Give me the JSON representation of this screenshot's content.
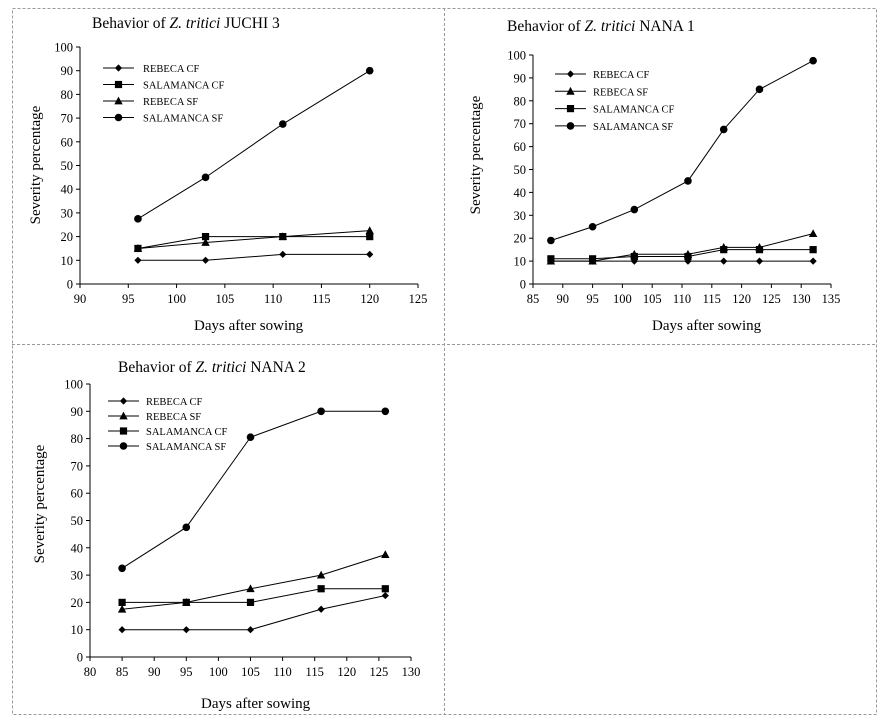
{
  "chart_data": [
    {
      "type": "line",
      "title": {
        "pre": "Behavior of ",
        "italic": "Z. tritici",
        "post": " JUCHI 3"
      },
      "xlabel": "Days after sowing",
      "ylabel": "Severity percentage",
      "xlim": [
        90,
        125
      ],
      "ylim": [
        0,
        100
      ],
      "xticks": [
        90,
        95,
        100,
        105,
        110,
        115,
        120,
        125
      ],
      "yticks": [
        0,
        10,
        20,
        30,
        40,
        50,
        60,
        70,
        80,
        90,
        100
      ],
      "legend": "top-left",
      "series": [
        {
          "name": "REBECA CF",
          "marker": "diamond",
          "x": [
            96,
            103,
            111,
            120
          ],
          "y": [
            10,
            10,
            12.5,
            12.5
          ]
        },
        {
          "name": "SALAMANCA CF",
          "marker": "square",
          "x": [
            96,
            103,
            111,
            120
          ],
          "y": [
            15,
            20,
            20,
            20
          ]
        },
        {
          "name": "REBECA SF",
          "marker": "triangle",
          "x": [
            96,
            103,
            111,
            120
          ],
          "y": [
            15,
            17.5,
            20,
            22.5
          ]
        },
        {
          "name": "SALAMANCA SF",
          "marker": "circle",
          "x": [
            96,
            103,
            111,
            120
          ],
          "y": [
            27.5,
            45,
            67.5,
            90
          ]
        }
      ]
    },
    {
      "type": "line",
      "title": {
        "pre": "Behavior of ",
        "italic": "Z. tritici",
        "post": " NANA 1"
      },
      "xlabel": "Days after sowing",
      "ylabel": "Severity percentage",
      "xlim": [
        85,
        135
      ],
      "ylim": [
        0,
        100
      ],
      "xticks": [
        85,
        90,
        95,
        100,
        105,
        110,
        115,
        120,
        125,
        130,
        135
      ],
      "yticks": [
        0,
        10,
        20,
        30,
        40,
        50,
        60,
        70,
        80,
        90,
        100
      ],
      "legend": "top-left",
      "series": [
        {
          "name": "REBECA CF",
          "marker": "diamond",
          "x": [
            88,
            95,
            102,
            111,
            117,
            123,
            132
          ],
          "y": [
            10,
            10,
            10,
            10,
            10,
            10,
            10
          ]
        },
        {
          "name": "REBECA SF",
          "marker": "triangle",
          "x": [
            88,
            95,
            102,
            111,
            117,
            123,
            132
          ],
          "y": [
            10,
            10,
            13,
            13,
            16,
            16,
            22
          ]
        },
        {
          "name": "SALAMANCA CF",
          "marker": "square",
          "x": [
            88,
            95,
            102,
            111,
            117,
            123,
            132
          ],
          "y": [
            11,
            11,
            12,
            12,
            15,
            15,
            15
          ]
        },
        {
          "name": "SALAMANCA SF",
          "marker": "circle",
          "x": [
            88,
            95,
            102,
            111,
            117,
            123,
            132
          ],
          "y": [
            19,
            25,
            32.5,
            45,
            67.5,
            85,
            97.5
          ]
        }
      ]
    },
    {
      "type": "line",
      "title": {
        "pre": "Behavior of ",
        "italic": "Z. tritici",
        "post": " NANA 2"
      },
      "xlabel": "Days after sowing",
      "ylabel": "Severity percentage",
      "xlim": [
        80,
        130
      ],
      "ylim": [
        0,
        100
      ],
      "xticks": [
        80,
        85,
        90,
        95,
        100,
        105,
        110,
        115,
        120,
        125,
        130
      ],
      "yticks": [
        0,
        10,
        20,
        30,
        40,
        50,
        60,
        70,
        80,
        90,
        100
      ],
      "legend": "top-left",
      "series": [
        {
          "name": "REBECA CF",
          "marker": "diamond",
          "x": [
            85,
            95,
            105,
            116,
            126
          ],
          "y": [
            10,
            10,
            10,
            17.5,
            22.5
          ]
        },
        {
          "name": "REBECA SF",
          "marker": "triangle",
          "x": [
            85,
            95,
            105,
            116,
            126
          ],
          "y": [
            17.5,
            20,
            25,
            30,
            37.5
          ]
        },
        {
          "name": "SALAMANCA CF",
          "marker": "square",
          "x": [
            85,
            95,
            105,
            116,
            126
          ],
          "y": [
            20,
            20,
            20,
            25,
            25
          ]
        },
        {
          "name": "SALAMANCA SF",
          "marker": "circle",
          "x": [
            85,
            95,
            105,
            116,
            126
          ],
          "y": [
            32.5,
            47.5,
            80.5,
            90,
            90
          ]
        }
      ]
    }
  ]
}
